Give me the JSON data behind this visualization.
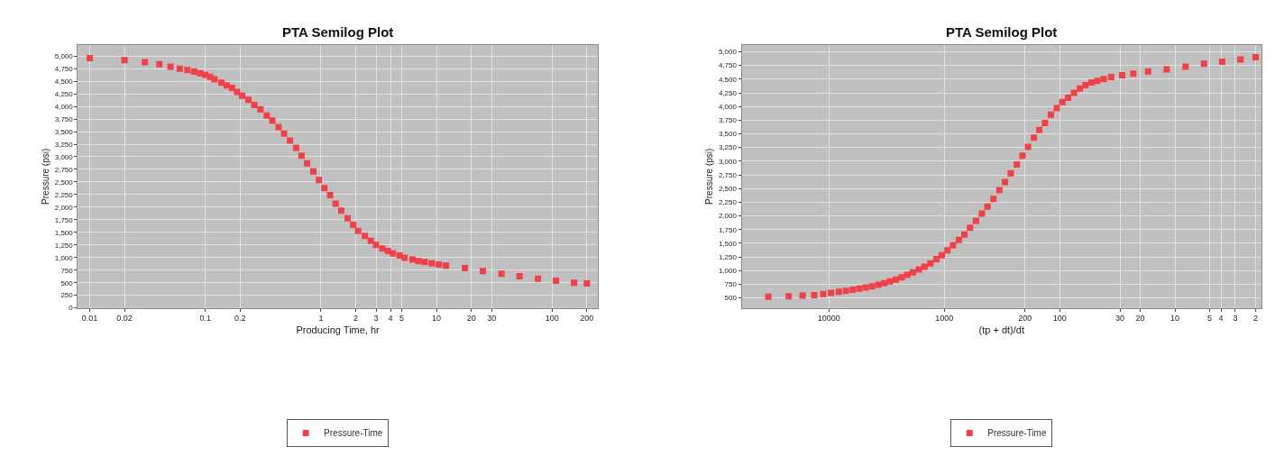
{
  "chart_data": [
    {
      "type": "scatter",
      "title": "PTA Semilog Plot",
      "xlabel": "Producing Time, hr",
      "ylabel": "Pressure (psi)",
      "log": "x",
      "grid": true,
      "marker": "square",
      "legend": "bottom",
      "xlim": [
        0.0079,
        248
      ],
      "xticks": [
        0.01,
        0.02,
        0.1,
        0.2,
        1,
        2,
        3,
        4,
        5,
        10,
        20,
        30,
        100,
        200
      ],
      "ylim": [
        0,
        5220
      ],
      "yticks": [
        0,
        250,
        500,
        750,
        {
          "value": 1000,
          "label": "1,000"
        },
        {
          "value": 1250,
          "label": "1,250"
        },
        {
          "value": 1500,
          "label": "1,500"
        },
        {
          "value": 1750,
          "label": "1,750"
        },
        {
          "value": 2000,
          "label": "2,000"
        },
        {
          "value": 2250,
          "label": "2,250"
        },
        {
          "value": 2500,
          "label": "2,500"
        },
        {
          "value": 2750,
          "label": "2,750"
        },
        {
          "value": 3000,
          "label": "3,000"
        },
        {
          "value": 3250,
          "label": "3,250"
        },
        {
          "value": 3500,
          "label": "3,500"
        },
        {
          "value": 3750,
          "label": "3,750"
        },
        {
          "value": 4000,
          "label": "4,000"
        },
        {
          "value": 4250,
          "label": "4,250"
        },
        {
          "value": 4500,
          "label": "4,500"
        },
        {
          "value": 4750,
          "label": "4,750"
        },
        {
          "value": 5000,
          "label": "5,000"
        }
      ],
      "series": [
        {
          "name": "Pressure-Time",
          "color": "#f04048",
          "x": [
            0.01,
            0.02,
            0.03,
            0.04,
            0.05,
            0.06,
            0.07,
            0.08,
            0.09,
            0.1,
            0.11,
            0.12,
            0.138,
            0.153,
            0.17,
            0.188,
            0.208,
            0.236,
            0.266,
            0.3,
            0.34,
            0.38,
            0.43,
            0.48,
            0.54,
            0.61,
            0.68,
            0.76,
            0.86,
            0.96,
            1.07,
            1.2,
            1.34,
            1.5,
            1.7,
            1.9,
            2.1,
            2.4,
            2.7,
            3.0,
            3.4,
            3.8,
            4.2,
            4.8,
            5.3,
            6.2,
            7.0,
            7.9,
            9.1,
            10.5,
            12.1,
            17.6,
            25.2,
            36.5,
            52.3,
            75.5,
            108,
            155,
            200
          ],
          "values": [
            4960,
            4920,
            4880,
            4840,
            4790,
            4750,
            4720,
            4690,
            4660,
            4630,
            4590,
            4540,
            4470,
            4420,
            4370,
            4290,
            4210,
            4130,
            4030,
            3940,
            3820,
            3720,
            3590,
            3460,
            3320,
            3180,
            3020,
            2870,
            2710,
            2540,
            2380,
            2240,
            2070,
            1930,
            1780,
            1650,
            1530,
            1430,
            1330,
            1250,
            1180,
            1130,
            1080,
            1040,
            995,
            960,
            930,
            910,
            885,
            860,
            840,
            790,
            730,
            680,
            630,
            580,
            540,
            500,
            485
          ]
        }
      ]
    },
    {
      "type": "scatter",
      "title": "PTA Semilog Plot",
      "xlabel": "(tp + dt)/dt",
      "ylabel": "Pressure (psi)",
      "log": "x",
      "grid": true,
      "marker": "square",
      "legend": "bottom",
      "xlim": [
        57000,
        1.78
      ],
      "xticks": [
        10000,
        1000,
        200,
        100,
        30,
        20,
        10,
        5,
        4,
        3,
        2
      ],
      "ylim": [
        317,
        5125
      ],
      "yticks": [
        500,
        750,
        {
          "value": 1000,
          "label": "1,000"
        },
        {
          "value": 1250,
          "label": "1,250"
        },
        {
          "value": 1500,
          "label": "1,500"
        },
        {
          "value": 1750,
          "label": "1,750"
        },
        {
          "value": 2000,
          "label": "2,000"
        },
        {
          "value": 2250,
          "label": "2,250"
        },
        {
          "value": 2500,
          "label": "2,500"
        },
        {
          "value": 2750,
          "label": "2,750"
        },
        {
          "value": 3000,
          "label": "3,000"
        },
        {
          "value": 3250,
          "label": "3,250"
        },
        {
          "value": 3500,
          "label": "3,500"
        },
        {
          "value": 3750,
          "label": "3,750"
        },
        {
          "value": 4000,
          "label": "4,000"
        },
        {
          "value": 4250,
          "label": "4,250"
        },
        {
          "value": 4500,
          "label": "4,500"
        },
        {
          "value": 4750,
          "label": "4,750"
        },
        {
          "value": 5000,
          "label": "5,000"
        }
      ],
      "series": [
        {
          "name": "Pressure-Time",
          "color": "#f04048",
          "x": [
            33500,
            22300,
            16900,
            13400,
            11200,
            9570,
            8190,
            7110,
            6220,
            5450,
            4800,
            4230,
            3730,
            3310,
            2960,
            2630,
            2340,
            2090,
            1870,
            1660,
            1480,
            1320,
            1170,
            1050,
            940,
            841,
            747,
            668,
            598,
            531,
            472,
            423,
            375,
            333,
            298,
            265,
            235,
            210,
            188,
            167,
            150,
            134,
            119,
            106,
            94.6,
            84.5,
            75.1,
            66.7,
            59.7,
            53.0,
            47.1,
            41.5,
            35.8,
            28.7,
            23.0,
            17.1,
            11.8,
            8.1,
            5.6,
            3.9,
            2.7,
            2.0
          ],
          "values": [
            520,
            530,
            540,
            550,
            570,
            590,
            610,
            630,
            650,
            670,
            690,
            710,
            740,
            770,
            800,
            835,
            875,
            920,
            965,
            1020,
            1070,
            1130,
            1210,
            1280,
            1370,
            1460,
            1560,
            1660,
            1780,
            1910,
            2040,
            2170,
            2310,
            2470,
            2620,
            2780,
            2940,
            3100,
            3260,
            3430,
            3570,
            3700,
            3850,
            3970,
            4080,
            4160,
            4250,
            4330,
            4390,
            4440,
            4470,
            4500,
            4540,
            4570,
            4600,
            4640,
            4680,
            4730,
            4780,
            4820,
            4860,
            4900
          ]
        }
      ]
    }
  ]
}
